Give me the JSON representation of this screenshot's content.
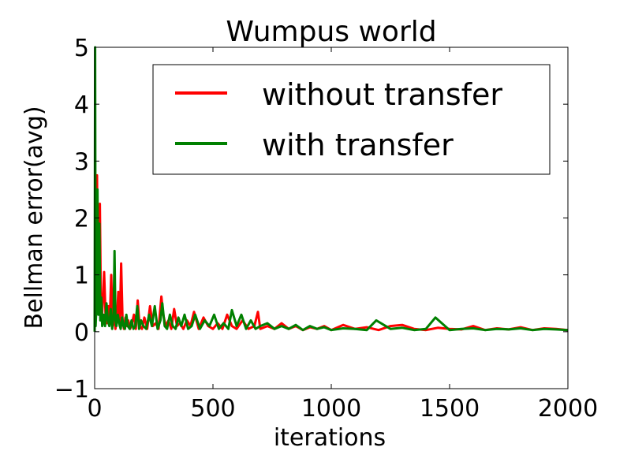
{
  "chart_data": {
    "type": "line",
    "title": "Wumpus world",
    "xlabel": "iterations",
    "ylabel": "Bellman error(avg)",
    "xlim": [
      0,
      2000
    ],
    "ylim": [
      -1,
      5
    ],
    "xticks": [
      "0",
      "500",
      "1000",
      "1500",
      "2000"
    ],
    "yticks": [
      "−1",
      "0",
      "1",
      "2",
      "3",
      "4",
      "5"
    ],
    "legend_position": "top-right",
    "grid": false,
    "series": [
      {
        "name": "without transfer",
        "color": "#ff0000",
        "x": [
          0,
          3,
          6,
          10,
          14,
          18,
          22,
          26,
          30,
          34,
          40,
          46,
          52,
          58,
          64,
          70,
          76,
          82,
          88,
          94,
          100,
          106,
          112,
          118,
          124,
          130,
          136,
          142,
          150,
          158,
          166,
          174,
          182,
          190,
          200,
          210,
          222,
          234,
          246,
          258,
          270,
          282,
          290,
          300,
          312,
          324,
          336,
          348,
          360,
          375,
          390,
          405,
          420,
          440,
          460,
          480,
          500,
          520,
          540,
          560,
          580,
          600,
          625,
          650,
          675,
          690,
          700,
          730,
          760,
          790,
          820,
          850,
          880,
          910,
          940,
          970,
          1000,
          1050,
          1100,
          1150,
          1200,
          1250,
          1300,
          1350,
          1400,
          1450,
          1500,
          1550,
          1600,
          1650,
          1700,
          1750,
          1800,
          1850,
          1900,
          1950,
          2000
        ],
        "values": [
          0.05,
          1.0,
          0.3,
          2.75,
          0.4,
          1.6,
          2.25,
          0.6,
          0.2,
          0.5,
          1.05,
          0.3,
          0.15,
          0.45,
          0.2,
          1.0,
          0.1,
          0.35,
          0.05,
          0.25,
          0.7,
          0.1,
          1.2,
          0.2,
          0.05,
          0.25,
          0.1,
          0.2,
          0.05,
          0.15,
          0.3,
          0.05,
          0.55,
          0.1,
          0.05,
          0.25,
          0.05,
          0.45,
          0.1,
          0.15,
          0.05,
          0.62,
          0.3,
          0.1,
          0.2,
          0.05,
          0.4,
          0.1,
          0.15,
          0.05,
          0.2,
          0.1,
          0.35,
          0.05,
          0.25,
          0.1,
          0.05,
          0.15,
          0.05,
          0.3,
          0.1,
          0.05,
          0.2,
          0.05,
          0.1,
          0.35,
          0.05,
          0.1,
          0.05,
          0.15,
          0.05,
          0.1,
          0.03,
          0.08,
          0.05,
          0.1,
          0.03,
          0.12,
          0.05,
          0.08,
          0.03,
          0.1,
          0.12,
          0.05,
          0.03,
          0.07,
          0.05,
          0.04,
          0.1,
          0.03,
          0.06,
          0.04,
          0.08,
          0.03,
          0.06,
          0.05,
          0.03
        ]
      },
      {
        "name": "with transfer",
        "color": "#008000",
        "x": [
          0,
          2,
          4,
          8,
          12,
          16,
          20,
          24,
          28,
          32,
          38,
          44,
          50,
          56,
          62,
          68,
          74,
          80,
          84,
          88,
          92,
          98,
          104,
          110,
          116,
          122,
          128,
          134,
          140,
          148,
          156,
          164,
          172,
          180,
          188,
          196,
          206,
          218,
          230,
          242,
          254,
          266,
          278,
          286,
          296,
          306,
          318,
          330,
          342,
          354,
          366,
          380,
          395,
          410,
          425,
          445,
          465,
          485,
          505,
          525,
          545,
          565,
          580,
          600,
          620,
          640,
          660,
          680,
          700,
          730,
          760,
          790,
          820,
          850,
          880,
          910,
          940,
          970,
          1000,
          1050,
          1100,
          1150,
          1190,
          1250,
          1300,
          1350,
          1400,
          1440,
          1500,
          1550,
          1600,
          1650,
          1700,
          1750,
          1800,
          1850,
          1900,
          1950,
          2000
        ],
        "values": [
          0.0,
          5.0,
          0.1,
          0.5,
          2.5,
          0.3,
          1.9,
          0.2,
          0.6,
          0.1,
          0.3,
          0.1,
          0.5,
          0.2,
          0.1,
          0.4,
          0.05,
          0.3,
          1.42,
          0.2,
          0.1,
          0.3,
          0.15,
          0.05,
          0.25,
          0.1,
          0.05,
          0.3,
          0.1,
          0.05,
          0.2,
          0.05,
          0.1,
          0.45,
          0.05,
          0.2,
          0.1,
          0.05,
          0.3,
          0.1,
          0.45,
          0.05,
          0.2,
          0.5,
          0.1,
          0.05,
          0.3,
          0.1,
          0.05,
          0.25,
          0.1,
          0.3,
          0.05,
          0.1,
          0.3,
          0.05,
          0.2,
          0.1,
          0.3,
          0.05,
          0.15,
          0.05,
          0.38,
          0.1,
          0.3,
          0.05,
          0.2,
          0.05,
          0.1,
          0.15,
          0.05,
          0.1,
          0.05,
          0.12,
          0.03,
          0.1,
          0.05,
          0.08,
          0.03,
          0.06,
          0.05,
          0.03,
          0.2,
          0.05,
          0.07,
          0.03,
          0.05,
          0.25,
          0.03,
          0.05,
          0.06,
          0.03,
          0.05,
          0.04,
          0.06,
          0.03,
          0.05,
          0.04,
          0.03
        ]
      }
    ]
  }
}
